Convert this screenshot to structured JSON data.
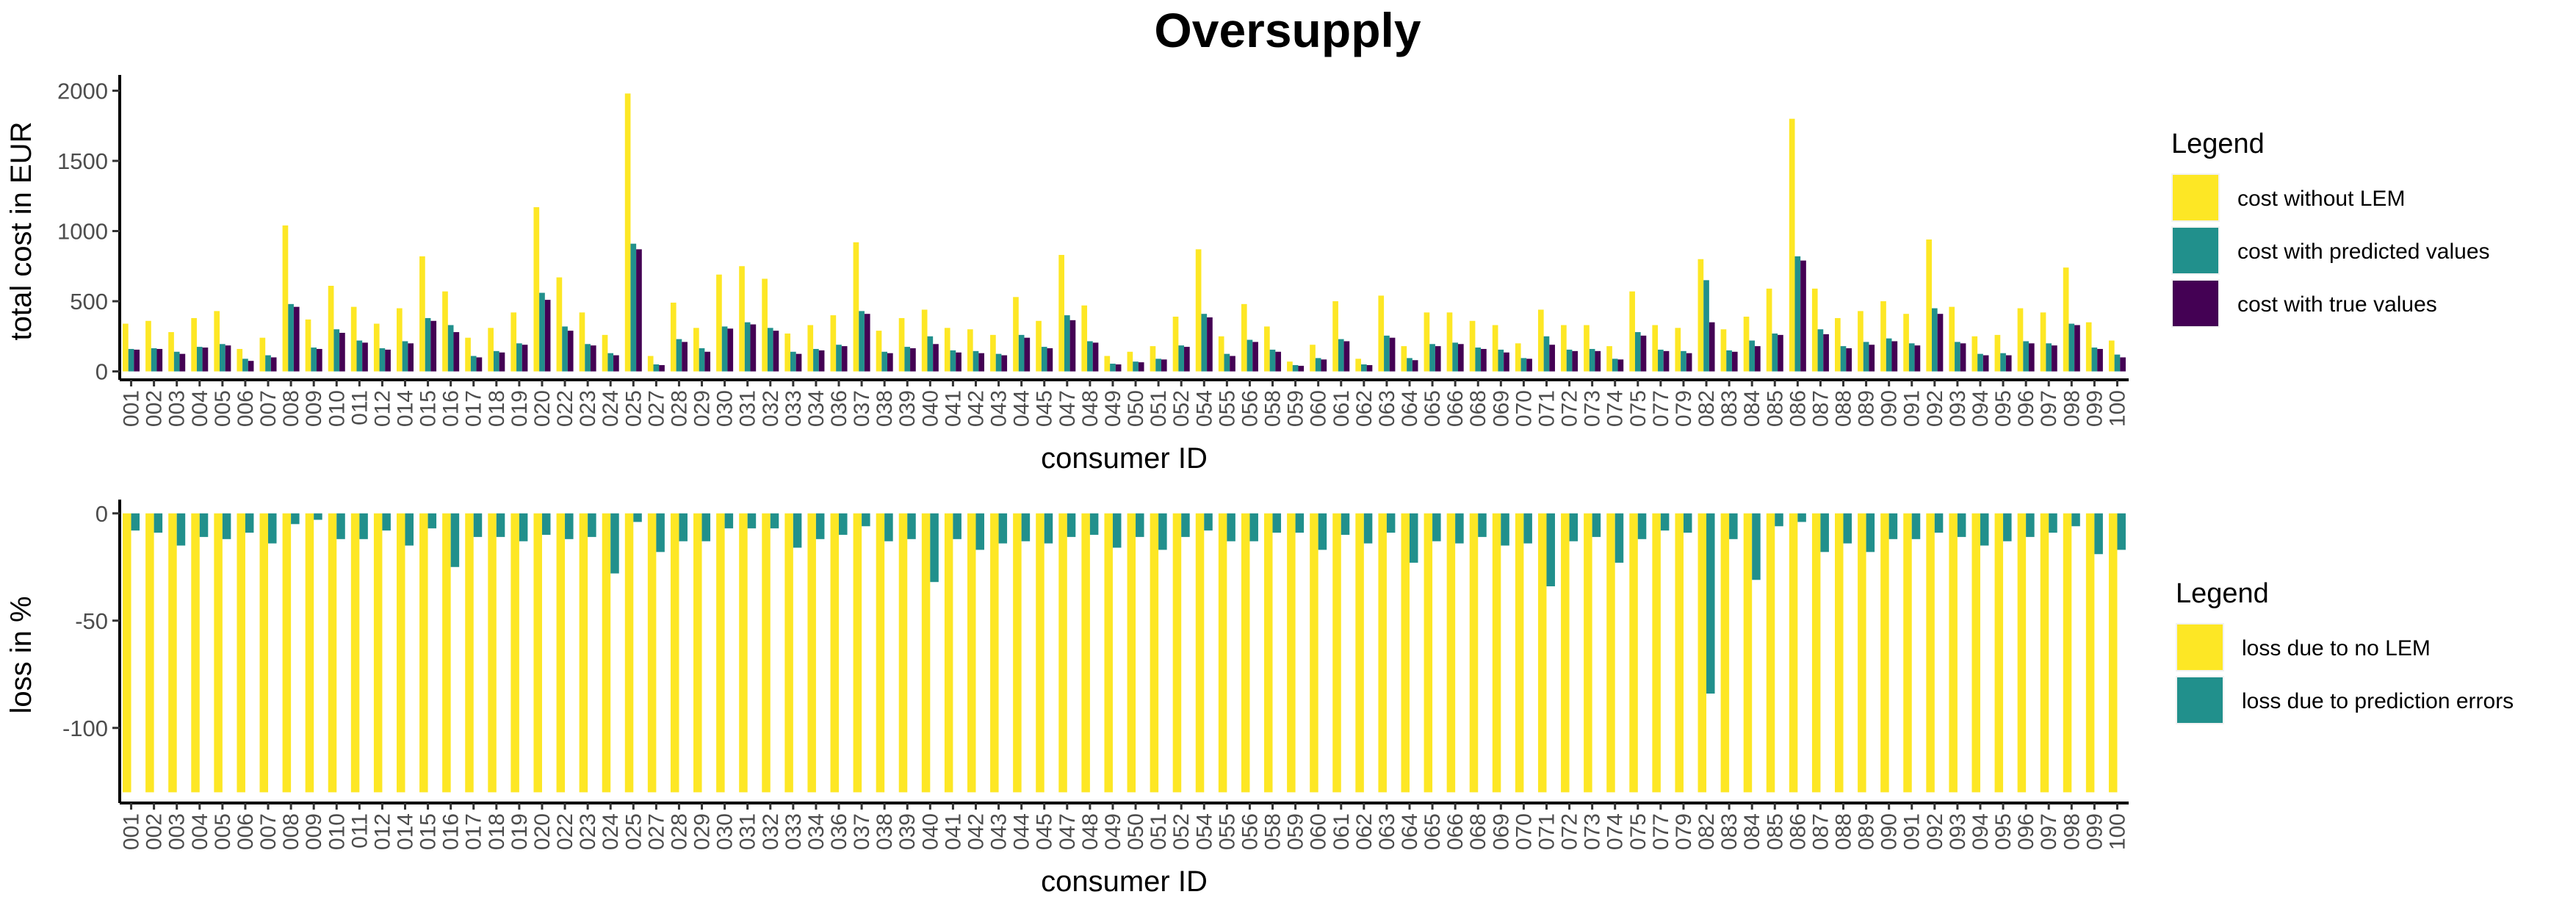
{
  "figure": {
    "title": "Oversupply"
  },
  "chart_data": [
    {
      "type": "bar",
      "id": "cost",
      "title": "",
      "xlabel": "consumer ID",
      "ylabel": "total cost in EUR",
      "ylim": [
        -60,
        2060
      ],
      "yticks": [
        0,
        500,
        1000,
        1500,
        2000
      ],
      "grid": false,
      "legend": {
        "title": "Legend",
        "position": "right"
      },
      "categories": [
        "001",
        "002",
        "003",
        "004",
        "005",
        "006",
        "007",
        "008",
        "009",
        "010",
        "011",
        "012",
        "014",
        "015",
        "016",
        "017",
        "018",
        "019",
        "020",
        "022",
        "023",
        "024",
        "025",
        "027",
        "028",
        "029",
        "030",
        "031",
        "032",
        "033",
        "034",
        "036",
        "037",
        "038",
        "039",
        "040",
        "041",
        "042",
        "043",
        "044",
        "045",
        "047",
        "048",
        "049",
        "050",
        "051",
        "052",
        "054",
        "055",
        "056",
        "058",
        "059",
        "060",
        "061",
        "062",
        "063",
        "064",
        "065",
        "066",
        "068",
        "069",
        "070",
        "071",
        "072",
        "073",
        "074",
        "075",
        "077",
        "079",
        "082",
        "083",
        "084",
        "085",
        "086",
        "087",
        "088",
        "089",
        "090",
        "091",
        "092",
        "093",
        "094",
        "095",
        "096",
        "097",
        "098",
        "099",
        "100"
      ],
      "series": [
        {
          "name": "cost without LEM",
          "color": "#FDE725",
          "values": [
            340,
            360,
            280,
            380,
            430,
            160,
            240,
            1040,
            370,
            610,
            460,
            340,
            450,
            820,
            570,
            240,
            310,
            420,
            1170,
            670,
            420,
            260,
            1980,
            110,
            490,
            310,
            690,
            750,
            660,
            270,
            330,
            400,
            920,
            290,
            380,
            440,
            310,
            300,
            260,
            530,
            360,
            830,
            470,
            110,
            140,
            180,
            390,
            870,
            250,
            480,
            320,
            70,
            190,
            500,
            90,
            540,
            180,
            420,
            420,
            360,
            330,
            200,
            440,
            330,
            330,
            180,
            570,
            330,
            310,
            800,
            300,
            390,
            590,
            1800,
            590,
            380,
            430,
            500,
            410,
            940,
            460,
            250,
            260,
            450,
            420,
            740,
            350,
            220
          ]
        },
        {
          "name": "cost with predicted values",
          "color": "#21908C",
          "values": [
            160,
            165,
            140,
            175,
            195,
            90,
            115,
            480,
            170,
            300,
            220,
            165,
            215,
            380,
            330,
            110,
            145,
            200,
            560,
            320,
            195,
            130,
            910,
            50,
            230,
            165,
            320,
            350,
            310,
            140,
            160,
            190,
            430,
            140,
            175,
            250,
            150,
            145,
            125,
            260,
            175,
            400,
            215,
            55,
            70,
            90,
            185,
            410,
            125,
            225,
            155,
            45,
            95,
            230,
            50,
            255,
            95,
            195,
            205,
            170,
            155,
            95,
            250,
            155,
            160,
            90,
            280,
            155,
            145,
            650,
            150,
            220,
            270,
            820,
            300,
            180,
            210,
            235,
            200,
            450,
            210,
            125,
            130,
            215,
            200,
            340,
            170,
            120
          ]
        },
        {
          "name": "cost with true values",
          "color": "#440154",
          "values": [
            155,
            160,
            125,
            170,
            185,
            75,
            100,
            460,
            160,
            275,
            205,
            155,
            200,
            360,
            280,
            100,
            135,
            190,
            510,
            290,
            185,
            115,
            870,
            45,
            210,
            140,
            305,
            335,
            290,
            125,
            150,
            180,
            410,
            130,
            165,
            195,
            135,
            130,
            115,
            240,
            165,
            365,
            205,
            50,
            65,
            85,
            175,
            385,
            110,
            210,
            140,
            40,
            85,
            215,
            45,
            240,
            80,
            180,
            195,
            160,
            135,
            90,
            190,
            145,
            145,
            85,
            255,
            145,
            130,
            350,
            140,
            180,
            260,
            790,
            265,
            165,
            190,
            215,
            185,
            410,
            200,
            115,
            115,
            200,
            185,
            330,
            160,
            100
          ]
        }
      ]
    },
    {
      "type": "bar",
      "id": "loss",
      "title": "",
      "xlabel": "consumer ID",
      "ylabel": "loss in %",
      "ylim": [
        -135,
        3
      ],
      "yticks": [
        -100,
        -50,
        0
      ],
      "grid": false,
      "legend": {
        "title": "Legend",
        "position": "right"
      },
      "categories": [
        "001",
        "002",
        "003",
        "004",
        "005",
        "006",
        "007",
        "008",
        "009",
        "010",
        "011",
        "012",
        "014",
        "015",
        "016",
        "017",
        "018",
        "019",
        "020",
        "022",
        "023",
        "024",
        "025",
        "027",
        "028",
        "029",
        "030",
        "031",
        "032",
        "033",
        "034",
        "036",
        "037",
        "038",
        "039",
        "040",
        "041",
        "042",
        "043",
        "044",
        "045",
        "047",
        "048",
        "049",
        "050",
        "051",
        "052",
        "054",
        "055",
        "056",
        "058",
        "059",
        "060",
        "061",
        "062",
        "063",
        "064",
        "065",
        "066",
        "068",
        "069",
        "070",
        "071",
        "072",
        "073",
        "074",
        "075",
        "077",
        "079",
        "082",
        "083",
        "084",
        "085",
        "086",
        "087",
        "088",
        "089",
        "090",
        "091",
        "092",
        "093",
        "094",
        "095",
        "096",
        "097",
        "098",
        "099",
        "100"
      ],
      "series": [
        {
          "name": "loss due to no LEM",
          "color": "#FDE725",
          "values": [
            -130,
            -130,
            -130,
            -130,
            -130,
            -130,
            -130,
            -130,
            -130,
            -130,
            -130,
            -130,
            -130,
            -130,
            -130,
            -130,
            -130,
            -130,
            -130,
            -130,
            -130,
            -130,
            -130,
            -130,
            -130,
            -130,
            -130,
            -130,
            -130,
            -130,
            -130,
            -130,
            -130,
            -130,
            -130,
            -130,
            -130,
            -130,
            -130,
            -130,
            -130,
            -130,
            -130,
            -130,
            -130,
            -130,
            -130,
            -130,
            -130,
            -130,
            -130,
            -130,
            -130,
            -130,
            -130,
            -130,
            -130,
            -130,
            -130,
            -130,
            -130,
            -130,
            -130,
            -130,
            -130,
            -130,
            -130,
            -130,
            -130,
            -130,
            -130,
            -130,
            -130,
            -130,
            -130,
            -130,
            -130,
            -130,
            -130,
            -130,
            -130,
            -130,
            -130,
            -130,
            -130,
            -130,
            -130,
            -130
          ]
        },
        {
          "name": "loss due to prediction errors",
          "color": "#21908C",
          "values": [
            -8,
            -9,
            -15,
            -11,
            -12,
            -9,
            -14,
            -5,
            -3,
            -12,
            -12,
            -8,
            -15,
            -7,
            -25,
            -11,
            -11,
            -13,
            -10,
            -12,
            -11,
            -28,
            -4,
            -18,
            -13,
            -13,
            -7,
            -7,
            -7,
            -16,
            -12,
            -10,
            -6,
            -13,
            -12,
            -32,
            -12,
            -17,
            -14,
            -13,
            -14,
            -11,
            -10,
            -16,
            -11,
            -17,
            -11,
            -8,
            -13,
            -13,
            -9,
            -9,
            -17,
            -10,
            -14,
            -9,
            -23,
            -13,
            -14,
            -11,
            -15,
            -14,
            -34,
            -13,
            -11,
            -23,
            -12,
            -8,
            -9,
            -84,
            -12,
            -31,
            -6,
            -4,
            -18,
            -14,
            -18,
            -12,
            -12,
            -9,
            -11,
            -15,
            -13,
            -11,
            -9,
            -6,
            -19,
            -17
          ]
        }
      ]
    }
  ]
}
